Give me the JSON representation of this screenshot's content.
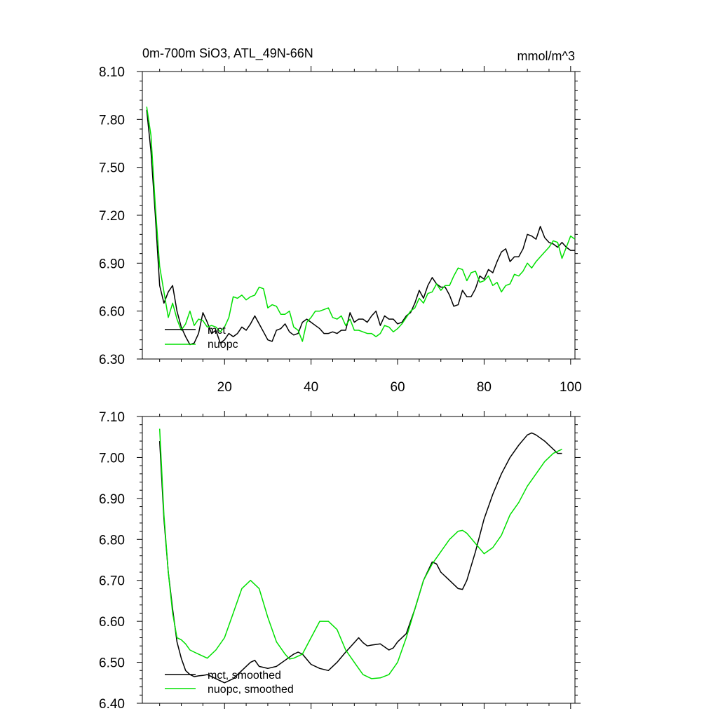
{
  "chart_data": [
    {
      "type": "line",
      "title": "0m-700m SiO3, ATL_49N-66N",
      "units": "mmol/m^3",
      "xlabel": "",
      "ylabel": "",
      "xlim": [
        1,
        101
      ],
      "ylim": [
        6.3,
        8.1
      ],
      "xticks": [
        20,
        40,
        60,
        80,
        100
      ],
      "yticks": [
        "6.30",
        "6.60",
        "6.90",
        "7.20",
        "7.50",
        "7.80",
        "8.10"
      ],
      "legend_position": "lower-left",
      "series": [
        {
          "name": "mct",
          "color": "#000000",
          "x": [
            2,
            3,
            4,
            5,
            6,
            7,
            8,
            9,
            10,
            11,
            12,
            13,
            14,
            15,
            16,
            17,
            18,
            19,
            20,
            21,
            22,
            23,
            24,
            25,
            26,
            27,
            28,
            29,
            30,
            31,
            32,
            33,
            34,
            35,
            36,
            37,
            38,
            39,
            40,
            41,
            42,
            43,
            44,
            45,
            46,
            47,
            48,
            49,
            50,
            51,
            52,
            53,
            54,
            55,
            56,
            57,
            58,
            59,
            60,
            61,
            62,
            63,
            64,
            65,
            66,
            67,
            68,
            69,
            70,
            71,
            72,
            73,
            74,
            75,
            76,
            77,
            78,
            79,
            80,
            81,
            82,
            83,
            84,
            85,
            86,
            87,
            88,
            89,
            90,
            91,
            92,
            93,
            94,
            95,
            96,
            97,
            98,
            99,
            100,
            101
          ],
          "values": [
            7.86,
            7.6,
            7.2,
            6.76,
            6.65,
            6.72,
            6.76,
            6.6,
            6.5,
            6.44,
            6.39,
            6.4,
            6.46,
            6.59,
            6.53,
            6.46,
            6.48,
            6.4,
            6.42,
            6.46,
            6.44,
            6.46,
            6.5,
            6.48,
            6.52,
            6.57,
            6.52,
            6.47,
            6.42,
            6.41,
            6.48,
            6.49,
            6.52,
            6.47,
            6.45,
            6.46,
            6.53,
            6.55,
            6.53,
            6.51,
            6.49,
            6.46,
            6.46,
            6.47,
            6.46,
            6.48,
            6.48,
            6.59,
            6.53,
            6.55,
            6.55,
            6.53,
            6.57,
            6.6,
            6.51,
            6.57,
            6.55,
            6.55,
            6.52,
            6.53,
            6.57,
            6.59,
            6.65,
            6.73,
            6.68,
            6.76,
            6.81,
            6.77,
            6.75,
            6.75,
            6.7,
            6.63,
            6.64,
            6.73,
            6.69,
            6.69,
            6.74,
            6.82,
            6.8,
            6.86,
            6.84,
            6.91,
            6.97,
            6.99,
            6.91,
            6.94,
            6.94,
            6.99,
            7.08,
            7.07,
            7.05,
            7.13,
            7.06,
            7.03,
            7.02,
            7.0,
            7.03,
            7.0,
            6.98,
            6.98
          ]
        },
        {
          "name": "nuopc",
          "color": "#00e000",
          "x": [
            2,
            3,
            4,
            5,
            6,
            7,
            8,
            9,
            10,
            11,
            12,
            13,
            14,
            15,
            16,
            17,
            18,
            19,
            20,
            21,
            22,
            23,
            24,
            25,
            26,
            27,
            28,
            29,
            30,
            31,
            32,
            33,
            34,
            35,
            36,
            37,
            38,
            39,
            40,
            41,
            42,
            43,
            44,
            45,
            46,
            47,
            48,
            49,
            50,
            51,
            52,
            53,
            54,
            55,
            56,
            57,
            58,
            59,
            60,
            61,
            62,
            63,
            64,
            65,
            66,
            67,
            68,
            69,
            70,
            71,
            72,
            73,
            74,
            75,
            76,
            77,
            78,
            79,
            80,
            81,
            82,
            83,
            84,
            85,
            86,
            87,
            88,
            89,
            90,
            91,
            92,
            93,
            94,
            95,
            96,
            97,
            98,
            99,
            100,
            101
          ],
          "values": [
            7.88,
            7.7,
            7.26,
            6.88,
            6.72,
            6.56,
            6.65,
            6.55,
            6.48,
            6.52,
            6.6,
            6.51,
            6.55,
            6.54,
            6.5,
            6.51,
            6.5,
            6.47,
            6.5,
            6.56,
            6.69,
            6.68,
            6.7,
            6.67,
            6.69,
            6.7,
            6.75,
            6.74,
            6.62,
            6.64,
            6.63,
            6.58,
            6.58,
            6.6,
            6.5,
            6.48,
            6.41,
            6.53,
            6.56,
            6.6,
            6.6,
            6.61,
            6.62,
            6.56,
            6.55,
            6.57,
            6.51,
            6.55,
            6.48,
            6.48,
            6.47,
            6.46,
            6.46,
            6.44,
            6.46,
            6.51,
            6.5,
            6.47,
            6.49,
            6.52,
            6.56,
            6.6,
            6.62,
            6.68,
            6.65,
            6.71,
            6.72,
            6.77,
            6.73,
            6.76,
            6.76,
            6.82,
            6.87,
            6.86,
            6.79,
            6.84,
            6.85,
            6.78,
            6.79,
            6.82,
            6.76,
            6.78,
            6.72,
            6.76,
            6.77,
            6.83,
            6.82,
            6.85,
            6.9,
            6.87,
            6.91,
            6.94,
            6.97,
            7.0,
            7.04,
            7.03,
            6.93,
            7.0,
            7.07,
            7.05
          ]
        }
      ]
    },
    {
      "type": "line",
      "title": "",
      "xlabel": "",
      "ylabel": "",
      "xlim": [
        1,
        101
      ],
      "ylim": [
        6.4,
        7.1
      ],
      "yticks": [
        "6.40",
        "6.50",
        "6.60",
        "6.70",
        "6.80",
        "6.90",
        "7.00",
        "7.10"
      ],
      "legend_position": "lower-left",
      "series": [
        {
          "name": "mct, smoothed",
          "color": "#000000",
          "x": [
            5,
            6,
            7,
            8,
            9,
            10,
            11,
            12,
            13,
            14,
            15,
            16,
            18,
            20,
            22,
            24,
            26,
            27,
            28,
            30,
            32,
            34,
            36,
            37,
            38,
            40,
            42,
            44,
            46,
            48,
            50,
            51,
            52,
            53,
            54,
            56,
            58,
            59,
            60,
            62,
            64,
            66,
            68,
            69,
            70,
            72,
            74,
            75,
            76,
            78,
            80,
            82,
            84,
            86,
            88,
            90,
            91,
            92,
            94,
            96,
            97,
            98
          ],
          "values": [
            7.04,
            6.85,
            6.72,
            6.63,
            6.55,
            6.51,
            6.48,
            6.47,
            6.465,
            6.467,
            6.468,
            6.47,
            6.46,
            6.45,
            6.46,
            6.48,
            6.5,
            6.505,
            6.49,
            6.485,
            6.49,
            6.505,
            6.52,
            6.525,
            6.52,
            6.495,
            6.485,
            6.48,
            6.5,
            6.525,
            6.548,
            6.56,
            6.548,
            6.54,
            6.542,
            6.545,
            6.53,
            6.535,
            6.55,
            6.57,
            6.63,
            6.7,
            6.745,
            6.74,
            6.72,
            6.7,
            6.68,
            6.678,
            6.7,
            6.77,
            6.85,
            6.91,
            6.96,
            7.0,
            7.03,
            7.055,
            7.06,
            7.055,
            7.04,
            7.02,
            7.01,
            7.01
          ]
        },
        {
          "name": "nuopc, smoothed",
          "color": "#00e000",
          "x": [
            5,
            6,
            7,
            8,
            9,
            10,
            11,
            12,
            13,
            14,
            15,
            16,
            18,
            20,
            22,
            24,
            26,
            28,
            30,
            32,
            34,
            35,
            36,
            38,
            40,
            42,
            44,
            46,
            48,
            50,
            52,
            54,
            56,
            58,
            59,
            60,
            62,
            64,
            66,
            68,
            70,
            72,
            74,
            75,
            76,
            78,
            80,
            82,
            84,
            86,
            88,
            90,
            92,
            94,
            96,
            98
          ],
          "values": [
            7.07,
            6.86,
            6.72,
            6.62,
            6.56,
            6.555,
            6.545,
            6.53,
            6.525,
            6.52,
            6.515,
            6.51,
            6.53,
            6.56,
            6.62,
            6.68,
            6.7,
            6.68,
            6.61,
            6.55,
            6.52,
            6.508,
            6.51,
            6.52,
            6.56,
            6.6,
            6.6,
            6.58,
            6.53,
            6.5,
            6.47,
            6.46,
            6.462,
            6.47,
            6.485,
            6.5,
            6.56,
            6.63,
            6.7,
            6.74,
            6.77,
            6.8,
            6.82,
            6.822,
            6.815,
            6.79,
            6.765,
            6.78,
            6.81,
            6.86,
            6.89,
            6.93,
            6.96,
            6.99,
            7.01,
            7.02
          ]
        }
      ]
    }
  ]
}
